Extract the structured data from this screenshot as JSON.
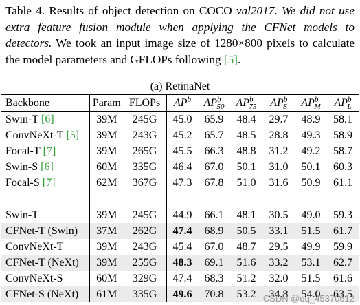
{
  "caption": {
    "segments": [
      "Table 4.",
      " Results of object detection on COCO ",
      "val2017",
      ". ",
      "We did not use extra feature fusion module when applying the CFNet models to detectors.",
      " We took an input image size of 1280×800 pixels to calculate the model parameters and GFLOPs following ",
      "[5]",
      "."
    ]
  },
  "table": {
    "title": "(a) RetinaNet",
    "headers": [
      "Backbone",
      "Param",
      "FLOPs",
      {
        "base": "AP",
        "sup": "b",
        "sub": ""
      },
      {
        "base": "AP",
        "sup": "b",
        "sub": "50"
      },
      {
        "base": "AP",
        "sup": "b",
        "sub": "75"
      },
      {
        "base": "AP",
        "sup": "b",
        "sub": "S"
      },
      {
        "base": "AP",
        "sup": "b",
        "sub": "M"
      },
      {
        "base": "AP",
        "sup": "b",
        "sub": "L"
      }
    ],
    "groups": [
      [
        {
          "backbone": "Swin-T",
          "cite": "[6]",
          "cells": [
            "39M",
            "245G",
            "45.0",
            "65.9",
            "48.4",
            "29.7",
            "48.9",
            "58.1"
          ]
        },
        {
          "backbone": "ConvNeXt-T",
          "cite": "[5]",
          "cells": [
            "39M",
            "243G",
            "45.2",
            "65.7",
            "48.5",
            "28.8",
            "49.3",
            "58.9"
          ]
        },
        {
          "backbone": "Focal-T",
          "cite": "[7]",
          "cells": [
            "39M",
            "265G",
            "45.5",
            "66.3",
            "48.8",
            "31.2",
            "49.2",
            "58.7"
          ]
        },
        {
          "backbone": "Swin-S",
          "cite": "[6]",
          "cells": [
            "60M",
            "335G",
            "46.4",
            "67.0",
            "50.1",
            "31.0",
            "50.1",
            "60.3"
          ]
        },
        {
          "backbone": "Focal-S",
          "cite": "[7]",
          "cells": [
            "62M",
            "367G",
            "47.3",
            "67.8",
            "51.0",
            "31.6",
            "50.9",
            "61.1"
          ]
        }
      ],
      [
        {
          "backbone": "Swin-T",
          "cells": [
            "39M",
            "245G",
            "44.9",
            "66.1",
            "48.1",
            "30.5",
            "49.0",
            "59.3"
          ]
        },
        {
          "backbone": "CFNet-T (Swin)",
          "shaded": true,
          "bold_cells": [
            2
          ],
          "cells": [
            "37M",
            "262G",
            "47.4",
            "68.9",
            "50.5",
            "33.1",
            "51.5",
            "61.7"
          ]
        },
        {
          "backbone": "ConvNeXt-T",
          "cells": [
            "39M",
            "243G",
            "45.4",
            "67.0",
            "48.7",
            "29.5",
            "49.9",
            "59.9"
          ]
        },
        {
          "backbone": "CFNet-T (NeXt)",
          "shaded": true,
          "bold_cells": [
            2
          ],
          "cells": [
            "39M",
            "255G",
            "48.3",
            "69.1",
            "51.6",
            "33.2",
            "53.1",
            "62.7"
          ]
        },
        {
          "backbone": "ConvNeXt-S",
          "cells": [
            "60M",
            "329G",
            "47.4",
            "68.3",
            "51.2",
            "32.0",
            "51.5",
            "61.6"
          ]
        },
        {
          "backbone": "CFNet-S (NeXt)",
          "shaded": true,
          "bold_cells": [
            2
          ],
          "cells": [
            "61M",
            "335G",
            "49.6",
            "70.8",
            "53.2",
            "34.8",
            "54.0",
            "63.5"
          ]
        }
      ]
    ]
  },
  "watermark": "CSDN @qq_45370612"
}
